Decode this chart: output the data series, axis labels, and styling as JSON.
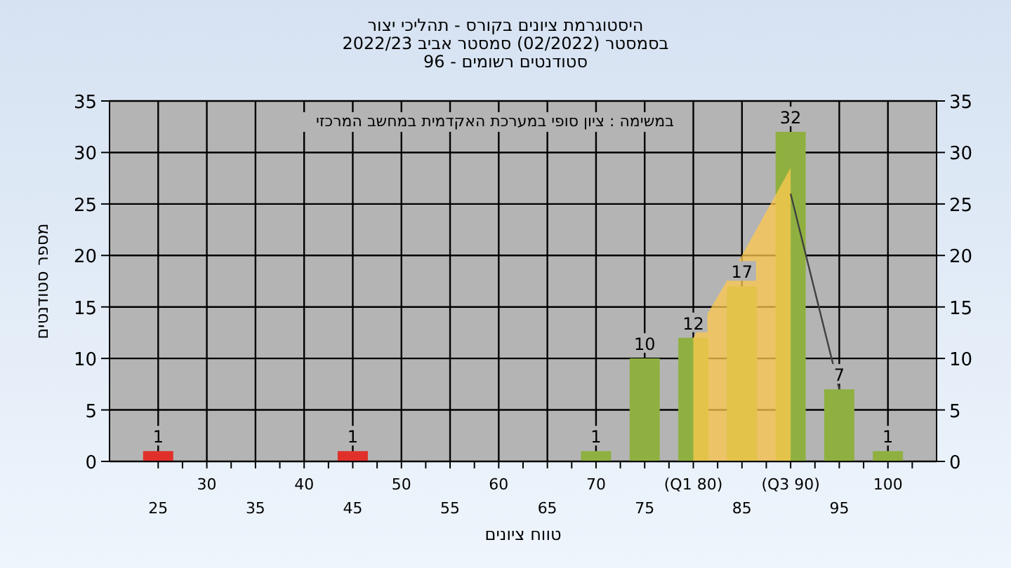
{
  "chart_data": {
    "type": "bar",
    "title": "היסטוגרמת ציונים בקורס - תהליכי יצור\nבסמסטר  (02/2022)  סמסטר אביב 2022/23\nסטודנטים רשומים - 96",
    "xlabel": "טווח ציונים",
    "ylabel": "מספר סטודנטים",
    "annotations": [
      "במשימה : ציון סופי במערכת האקדמית במחשב המרכזי"
    ],
    "categories": [
      "25",
      "30",
      "35",
      "40",
      "45",
      "50",
      "55",
      "60",
      "65",
      "70",
      "75",
      "(Q1 80)",
      "85",
      "(Q3 90)",
      "95",
      "100"
    ],
    "series": [
      {
        "values": [
          1,
          0,
          0,
          0,
          1,
          0,
          0,
          0,
          0,
          1,
          10,
          12,
          17,
          32,
          7,
          1
        ],
        "colors": [
          "#e0302a",
          "#8fb040",
          "#8fb040",
          "#8fb040",
          "#e0302a",
          "#8fb040",
          "#8fb040",
          "#8fb040",
          "#8fb040",
          "#8fb040",
          "#8fb040",
          "#8fb040",
          "#8fb040",
          "#8fb040",
          "#8fb040",
          "#8fb040"
        ],
        "value_labels": [
          "1",
          null,
          null,
          null,
          "1",
          null,
          null,
          null,
          null,
          "1",
          "10",
          "12",
          "17",
          "32",
          "7",
          "1"
        ]
      },
      {
        "type": "area",
        "color": "#ffc94d",
        "values": [
          null,
          null,
          null,
          null,
          null,
          null,
          null,
          null,
          null,
          null,
          null,
          12,
          20,
          28.5,
          null,
          null
        ]
      },
      {
        "type": "line",
        "color": "#404040",
        "values": [
          null,
          null,
          null,
          null,
          null,
          null,
          null,
          null,
          null,
          null,
          null,
          null,
          null,
          26,
          7,
          null
        ]
      }
    ],
    "ylim": [
      0,
      35
    ],
    "yticks": [
      0,
      5,
      10,
      15,
      20,
      25,
      30,
      35
    ],
    "y2lim": [
      0,
      35
    ],
    "y2ticks": [
      0,
      5,
      10,
      15,
      20,
      25,
      30,
      35
    ],
    "grid": true
  }
}
